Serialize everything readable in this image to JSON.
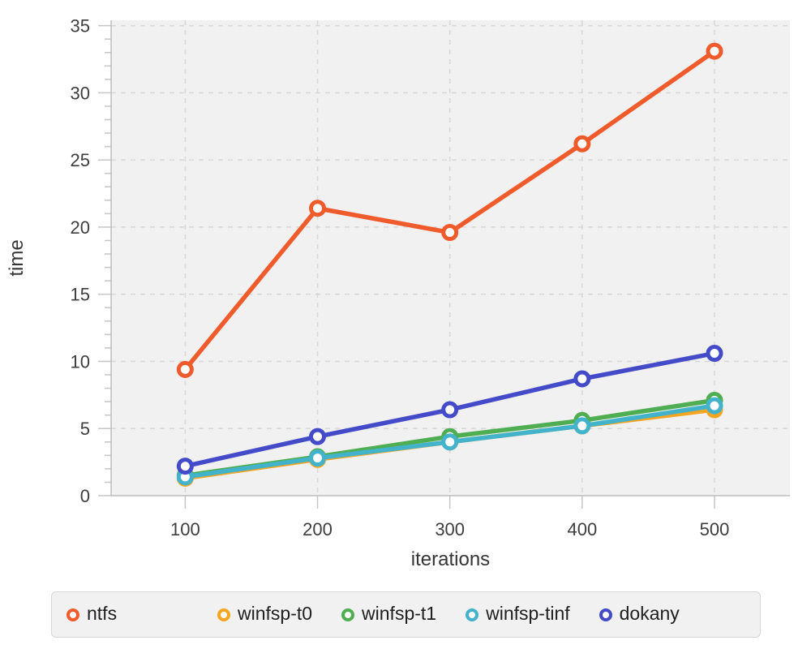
{
  "chart_data": {
    "type": "line",
    "title": "",
    "xlabel": "iterations",
    "ylabel": "time",
    "x": [
      100,
      200,
      300,
      400,
      500
    ],
    "series": [
      {
        "name": "ntfs",
        "color": "#ef5b2b",
        "values": [
          9.4,
          21.4,
          19.6,
          26.2,
          33.1
        ]
      },
      {
        "name": "winfsp-t0",
        "color": "#f6a522",
        "values": [
          1.3,
          2.7,
          4.0,
          5.2,
          6.4
        ]
      },
      {
        "name": "winfsp-t1",
        "color": "#4fad52",
        "values": [
          1.5,
          2.9,
          4.4,
          5.6,
          7.1
        ]
      },
      {
        "name": "winfsp-tinf",
        "color": "#42b3cb",
        "values": [
          1.4,
          2.8,
          4.0,
          5.2,
          6.7
        ]
      },
      {
        "name": "dokany",
        "color": "#444bc8",
        "values": [
          2.2,
          4.4,
          6.4,
          8.7,
          10.6
        ]
      }
    ],
    "draw_order": [
      "winfsp-t0",
      "winfsp-t1",
      "winfsp-tinf",
      "dokany",
      "ntfs"
    ],
    "x_ticks": [
      100,
      200,
      300,
      400,
      500
    ],
    "y_ticks": [
      0,
      5,
      10,
      15,
      20,
      25,
      30,
      35
    ],
    "y_minor_tick_step": 1,
    "xlim": [
      44,
      557
    ],
    "ylim": [
      0,
      35.4
    ],
    "grid": true,
    "legend_position": "bottom",
    "style": {
      "plot_bg": "#f1f1f2",
      "grid_color": "#d8d8d8",
      "axis_color": "#bdbdbd",
      "tick_color": "#c6c6c6",
      "tick_label_color": "#3d3d3d",
      "axis_title_color": "#353535"
    }
  }
}
